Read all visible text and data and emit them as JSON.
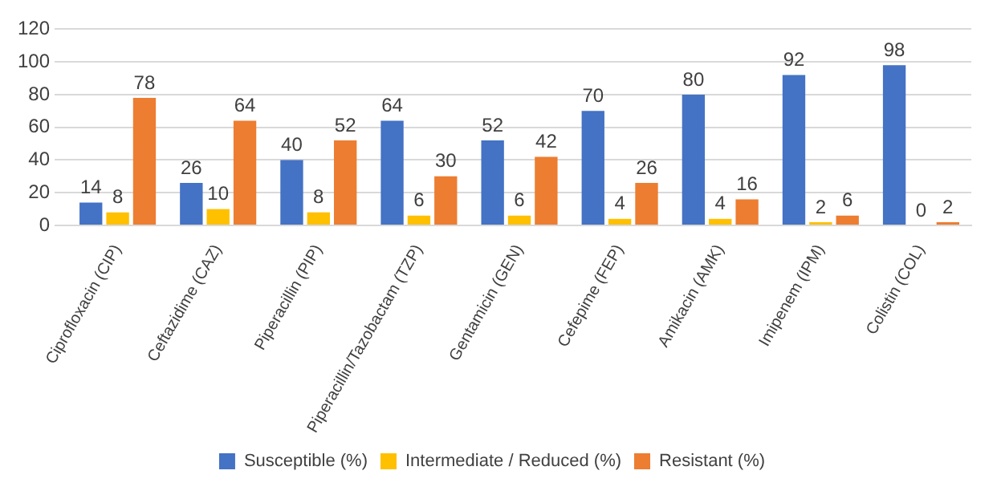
{
  "chart_data": {
    "type": "bar",
    "categories": [
      "Ciprofloxacin (CIP)",
      "Ceftazidime (CAZ)",
      "Piperacillin (PIP)",
      "Piperacillin/Tazobactam (TZP)",
      "Gentamicin (GEN)",
      "Cefepime (FEP)",
      "Amikacin (AMK)",
      "Imipenem (IPM)",
      "Colistin (COL)"
    ],
    "series": [
      {
        "name": "Susceptible (%)",
        "color": "#4472c4",
        "values": [
          14,
          26,
          40,
          64,
          52,
          70,
          80,
          92,
          98
        ]
      },
      {
        "name": "Intermediate / Reduced (%)",
        "color": "#ffc000",
        "values": [
          8,
          10,
          8,
          6,
          6,
          4,
          4,
          2,
          0
        ]
      },
      {
        "name": "Resistant (%)",
        "color": "#ed7d31",
        "values": [
          78,
          64,
          52,
          30,
          42,
          26,
          16,
          6,
          2
        ]
      }
    ],
    "ylim": [
      0,
      120
    ],
    "yticks": [
      0,
      20,
      40,
      60,
      80,
      100,
      120
    ],
    "grid": "y",
    "legend": "bottom",
    "data_labels": true
  }
}
